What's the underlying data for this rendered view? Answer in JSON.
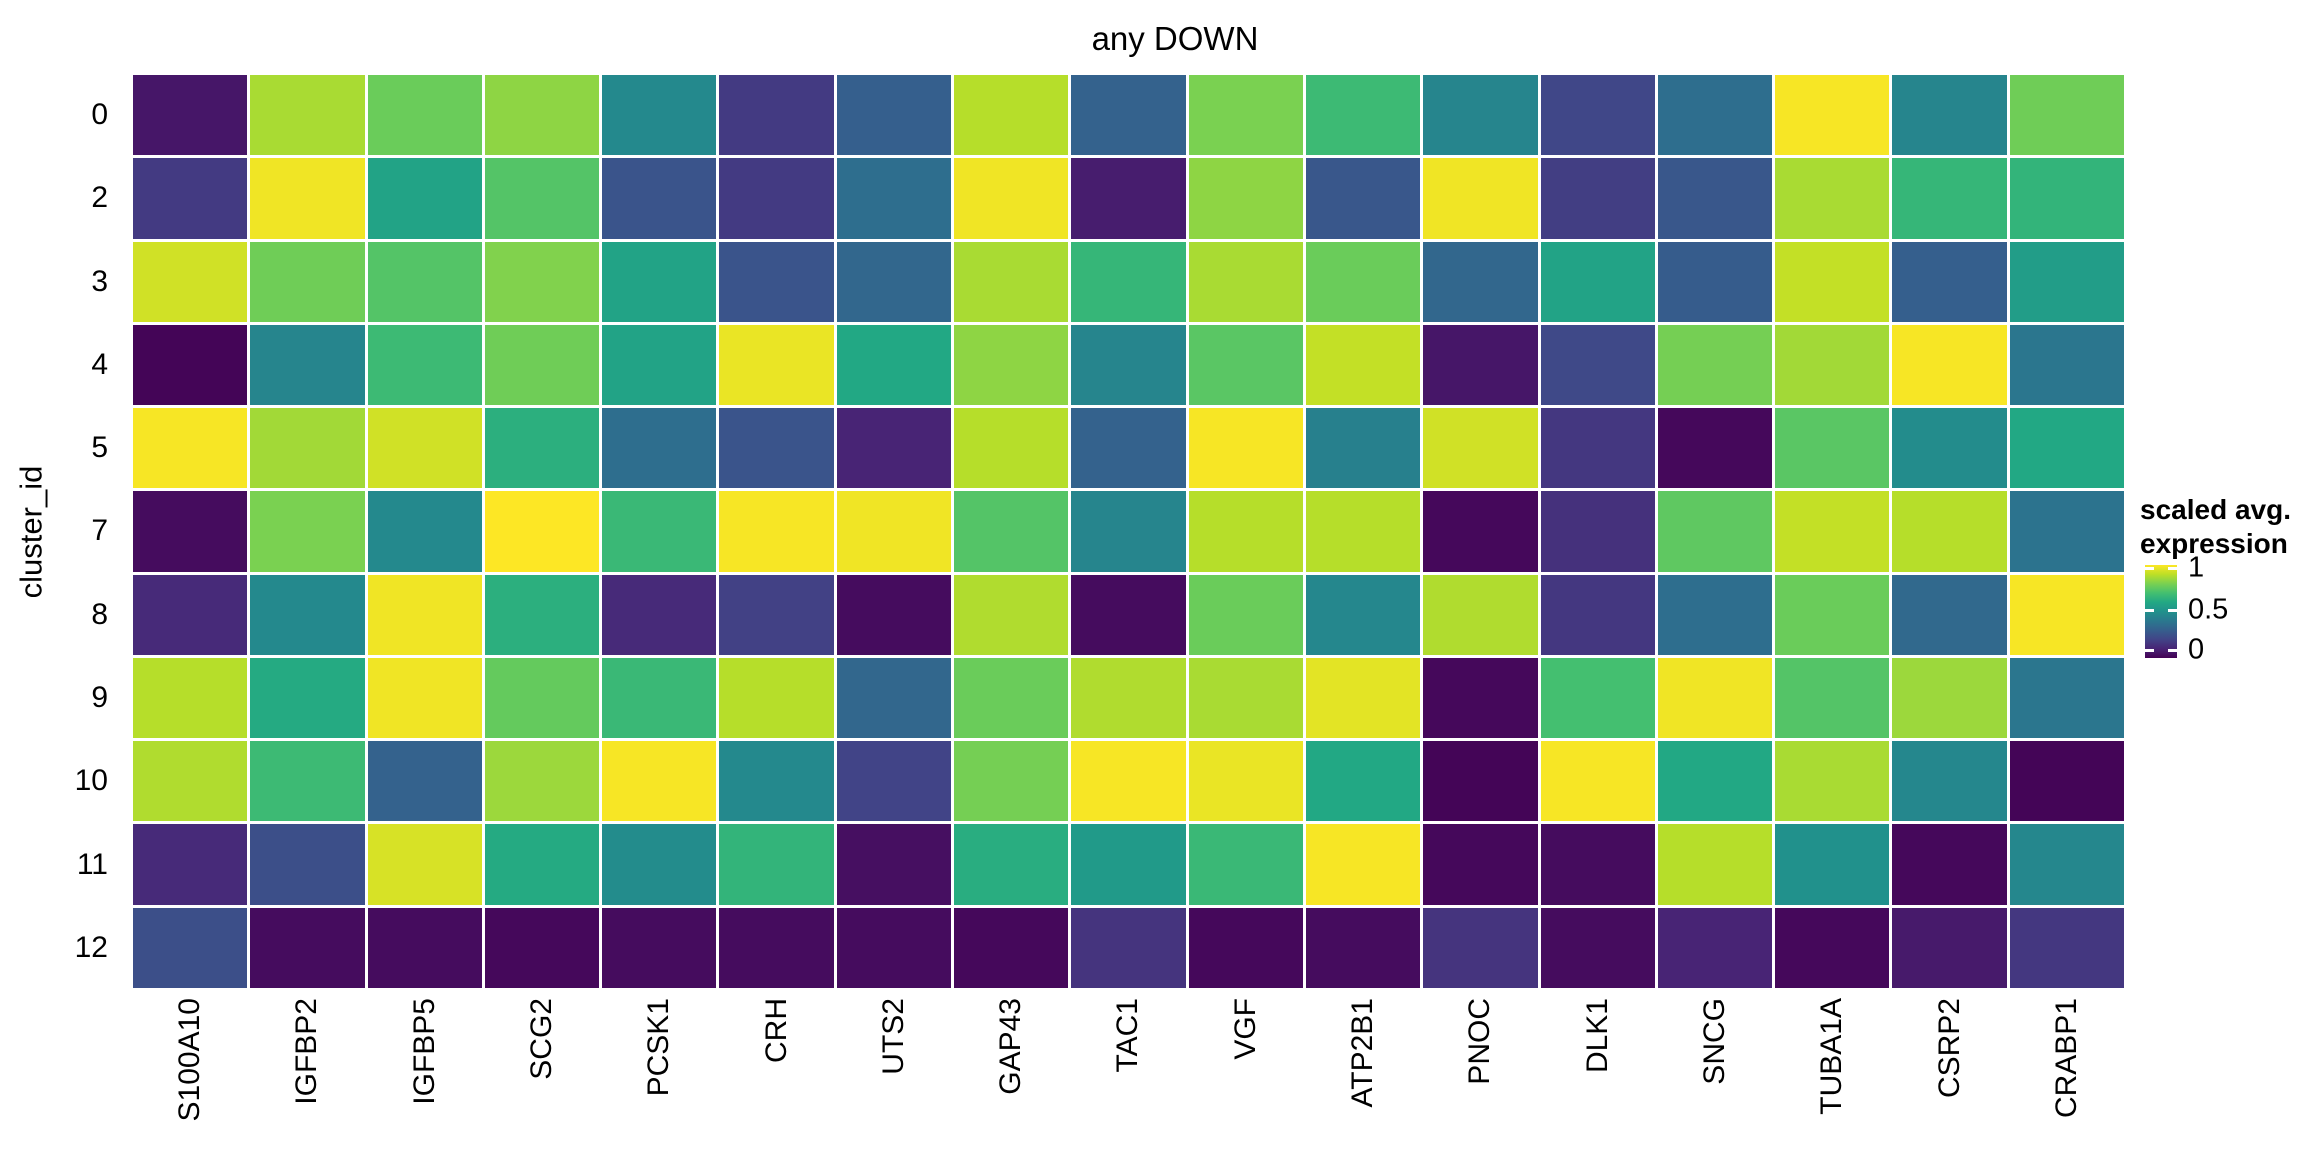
{
  "title": "any DOWN",
  "y_axis": {
    "label": "cluster_id"
  },
  "legend": {
    "title_line1": "scaled avg.",
    "title_line2": "expression",
    "tick_labels": [
      "1",
      "0.5",
      "0"
    ]
  },
  "chart_data": {
    "type": "heatmap",
    "title": "any DOWN",
    "x_categories": [
      "S100A10",
      "IGFBP2",
      "IGFBP5",
      "SCG2",
      "PCSK1",
      "CRH",
      "UTS2",
      "GAP43",
      "TAC1",
      "VGF",
      "ATP2B1",
      "PNOC",
      "DLK1",
      "SNCG",
      "TUBA1A",
      "CSRP2",
      "CRABP1"
    ],
    "y_categories": [
      "0",
      "2",
      "3",
      "4",
      "5",
      "7",
      "8",
      "9",
      "10",
      "11",
      "12"
    ],
    "xlabel": "",
    "ylabel": "cluster_id",
    "legend_title": "scaled avg. expression",
    "colormap": "viridis",
    "colormap_stops": [
      "#440154",
      "#482475",
      "#414487",
      "#355f8d",
      "#2a788e",
      "#21918c",
      "#22a884",
      "#44bf70",
      "#7ad151",
      "#bddf26",
      "#fde725"
    ],
    "value_range": [
      0,
      1
    ],
    "legend_ticks": [
      1,
      0.5,
      0
    ],
    "grid_gap_color": "#ffffff",
    "values": [
      [
        0.06,
        0.87,
        0.77,
        0.83,
        0.47,
        0.17,
        0.3,
        0.89,
        0.31,
        0.8,
        0.68,
        0.45,
        0.21,
        0.36,
        0.99,
        0.45,
        0.78
      ],
      [
        0.17,
        0.98,
        0.58,
        0.73,
        0.26,
        0.17,
        0.36,
        0.98,
        0.08,
        0.83,
        0.27,
        0.98,
        0.18,
        0.27,
        0.87,
        0.66,
        0.65
      ],
      [
        0.93,
        0.78,
        0.73,
        0.81,
        0.58,
        0.26,
        0.33,
        0.87,
        0.66,
        0.87,
        0.77,
        0.33,
        0.58,
        0.29,
        0.91,
        0.3,
        0.55
      ],
      [
        0.01,
        0.45,
        0.68,
        0.78,
        0.58,
        0.97,
        0.6,
        0.83,
        0.45,
        0.74,
        0.91,
        0.06,
        0.22,
        0.79,
        0.86,
        0.99,
        0.39
      ],
      [
        0.99,
        0.86,
        0.93,
        0.63,
        0.36,
        0.26,
        0.1,
        0.89,
        0.31,
        0.99,
        0.43,
        0.93,
        0.16,
        0.02,
        0.74,
        0.48,
        0.6
      ],
      [
        0.03,
        0.8,
        0.47,
        1.0,
        0.67,
        0.99,
        0.98,
        0.73,
        0.45,
        0.89,
        0.89,
        0.02,
        0.14,
        0.75,
        0.91,
        0.89,
        0.38
      ],
      [
        0.12,
        0.47,
        0.98,
        0.63,
        0.12,
        0.19,
        0.03,
        0.88,
        0.03,
        0.77,
        0.46,
        0.88,
        0.16,
        0.36,
        0.77,
        0.34,
        0.99
      ],
      [
        0.89,
        0.61,
        0.98,
        0.76,
        0.67,
        0.89,
        0.33,
        0.77,
        0.88,
        0.87,
        0.96,
        0.02,
        0.7,
        0.98,
        0.73,
        0.85,
        0.39
      ],
      [
        0.88,
        0.68,
        0.31,
        0.85,
        0.99,
        0.47,
        0.2,
        0.79,
        0.99,
        0.97,
        0.6,
        0.01,
        0.99,
        0.6,
        0.87,
        0.46,
        0.01
      ],
      [
        0.12,
        0.24,
        0.94,
        0.61,
        0.48,
        0.65,
        0.04,
        0.62,
        0.54,
        0.67,
        0.99,
        0.02,
        0.03,
        0.89,
        0.5,
        0.02,
        0.46
      ],
      [
        0.24,
        0.03,
        0.03,
        0.02,
        0.03,
        0.03,
        0.03,
        0.02,
        0.15,
        0.02,
        0.03,
        0.15,
        0.03,
        0.1,
        0.02,
        0.07,
        0.16
      ]
    ]
  }
}
